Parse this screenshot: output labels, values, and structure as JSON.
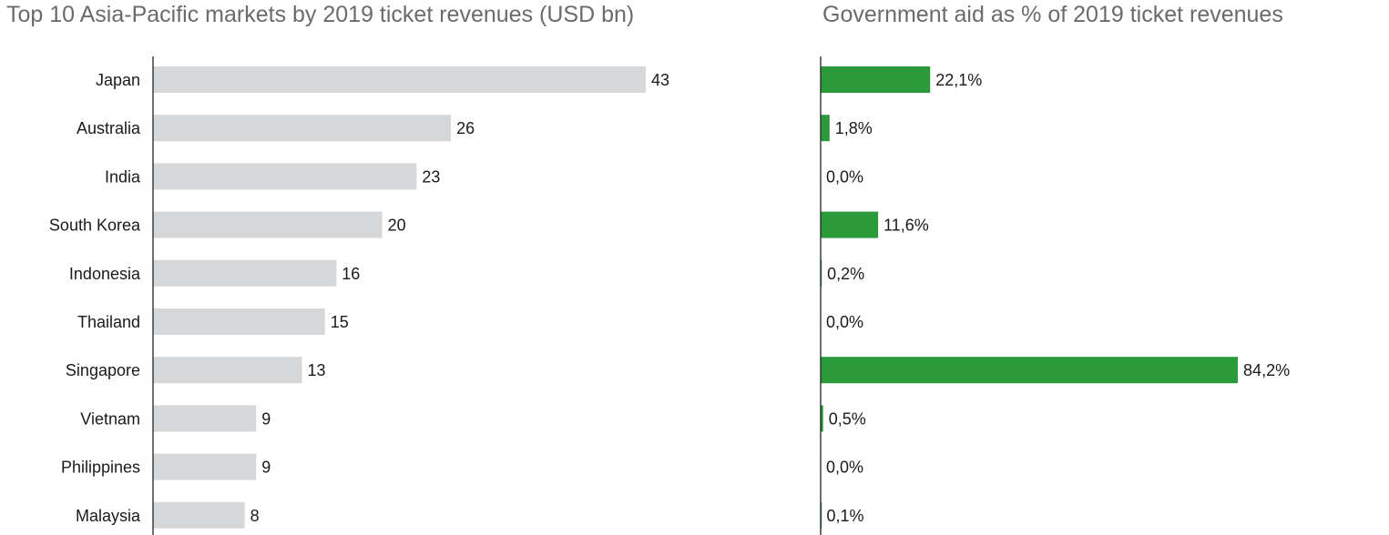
{
  "chart_data": [
    {
      "type": "bar",
      "orientation": "horizontal",
      "title": "Top 10 Asia-Pacific markets by 2019 ticket revenues (USD bn)",
      "categories": [
        "Japan",
        "Australia",
        "India",
        "South Korea",
        "Indonesia",
        "Thailand",
        "Singapore",
        "Vietnam",
        "Philippines",
        "Malaysia"
      ],
      "values": [
        43,
        26,
        23,
        20,
        16,
        15,
        13,
        9,
        9,
        8
      ],
      "value_labels": [
        "43",
        "26",
        "23",
        "20",
        "16",
        "15",
        "13",
        "9",
        "9",
        "8"
      ],
      "xlim": [
        0,
        50
      ],
      "color": "#d6d7d9",
      "grid": false
    },
    {
      "type": "bar",
      "orientation": "horizontal",
      "title": "Government aid as % of 2019 ticket revenues",
      "categories": [
        "Japan",
        "Australia",
        "India",
        "South Korea",
        "Indonesia",
        "Thailand",
        "Singapore",
        "Vietnam",
        "Philippines",
        "Malaysia"
      ],
      "values": [
        22.1,
        1.8,
        0.0,
        11.6,
        0.2,
        0.0,
        84.2,
        0.5,
        0.0,
        0.1
      ],
      "value_labels": [
        "22,1%",
        "1,8%",
        "0,0%",
        "11,6%",
        "0,2%",
        "0,0%",
        "84,2%",
        "0,5%",
        "0,0%",
        "0,1%"
      ],
      "xlim": [
        0,
        100
      ],
      "color": "#2a9a3a",
      "grid": false
    }
  ]
}
